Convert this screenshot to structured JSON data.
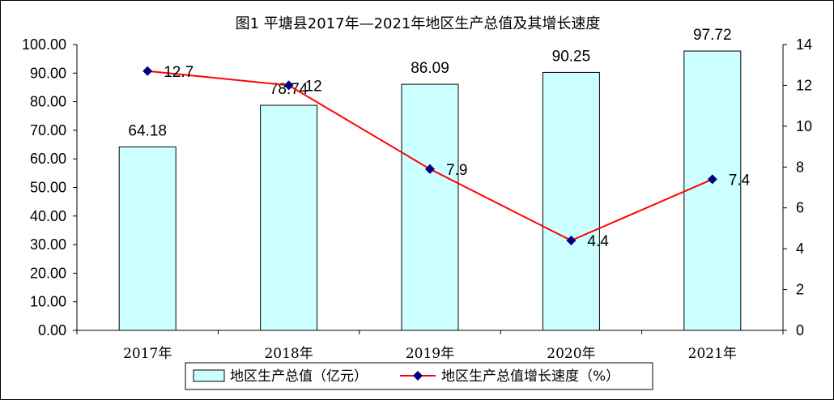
{
  "chart_data": {
    "type": "bar",
    "title": "图1  平塘县2017年—2021年地区生产总值及其增长速度",
    "categories": [
      "2017年",
      "2018年",
      "2019年",
      "2020年",
      "2021年"
    ],
    "series": [
      {
        "name": "地区生产总值（亿元）",
        "type": "bar",
        "axis": "left",
        "color": "#ccffff",
        "values": [
          64.18,
          78.74,
          86.09,
          90.25,
          97.72
        ],
        "labels": [
          "64.18",
          "78.74",
          "86.09",
          "90.25",
          "97.72"
        ]
      },
      {
        "name": "地区生产总值增长速度（%）",
        "type": "line",
        "axis": "right",
        "color": "#ff0000",
        "marker_color": "#000080",
        "values": [
          12.7,
          12,
          7.9,
          4.4,
          7.4
        ],
        "labels": [
          "12.7",
          "12",
          "7.9",
          "4.4",
          "7.4"
        ]
      }
    ],
    "y_left": {
      "ylim": [
        0,
        100
      ],
      "ticks": [
        "0.00",
        "10.00",
        "20.00",
        "30.00",
        "40.00",
        "50.00",
        "60.00",
        "70.00",
        "80.00",
        "90.00",
        "100.00"
      ]
    },
    "y_right": {
      "ylim": [
        0,
        14
      ],
      "ticks": [
        "0",
        "2",
        "4",
        "6",
        "8",
        "10",
        "12",
        "14"
      ]
    },
    "grid": false,
    "legend_position": "bottom"
  }
}
